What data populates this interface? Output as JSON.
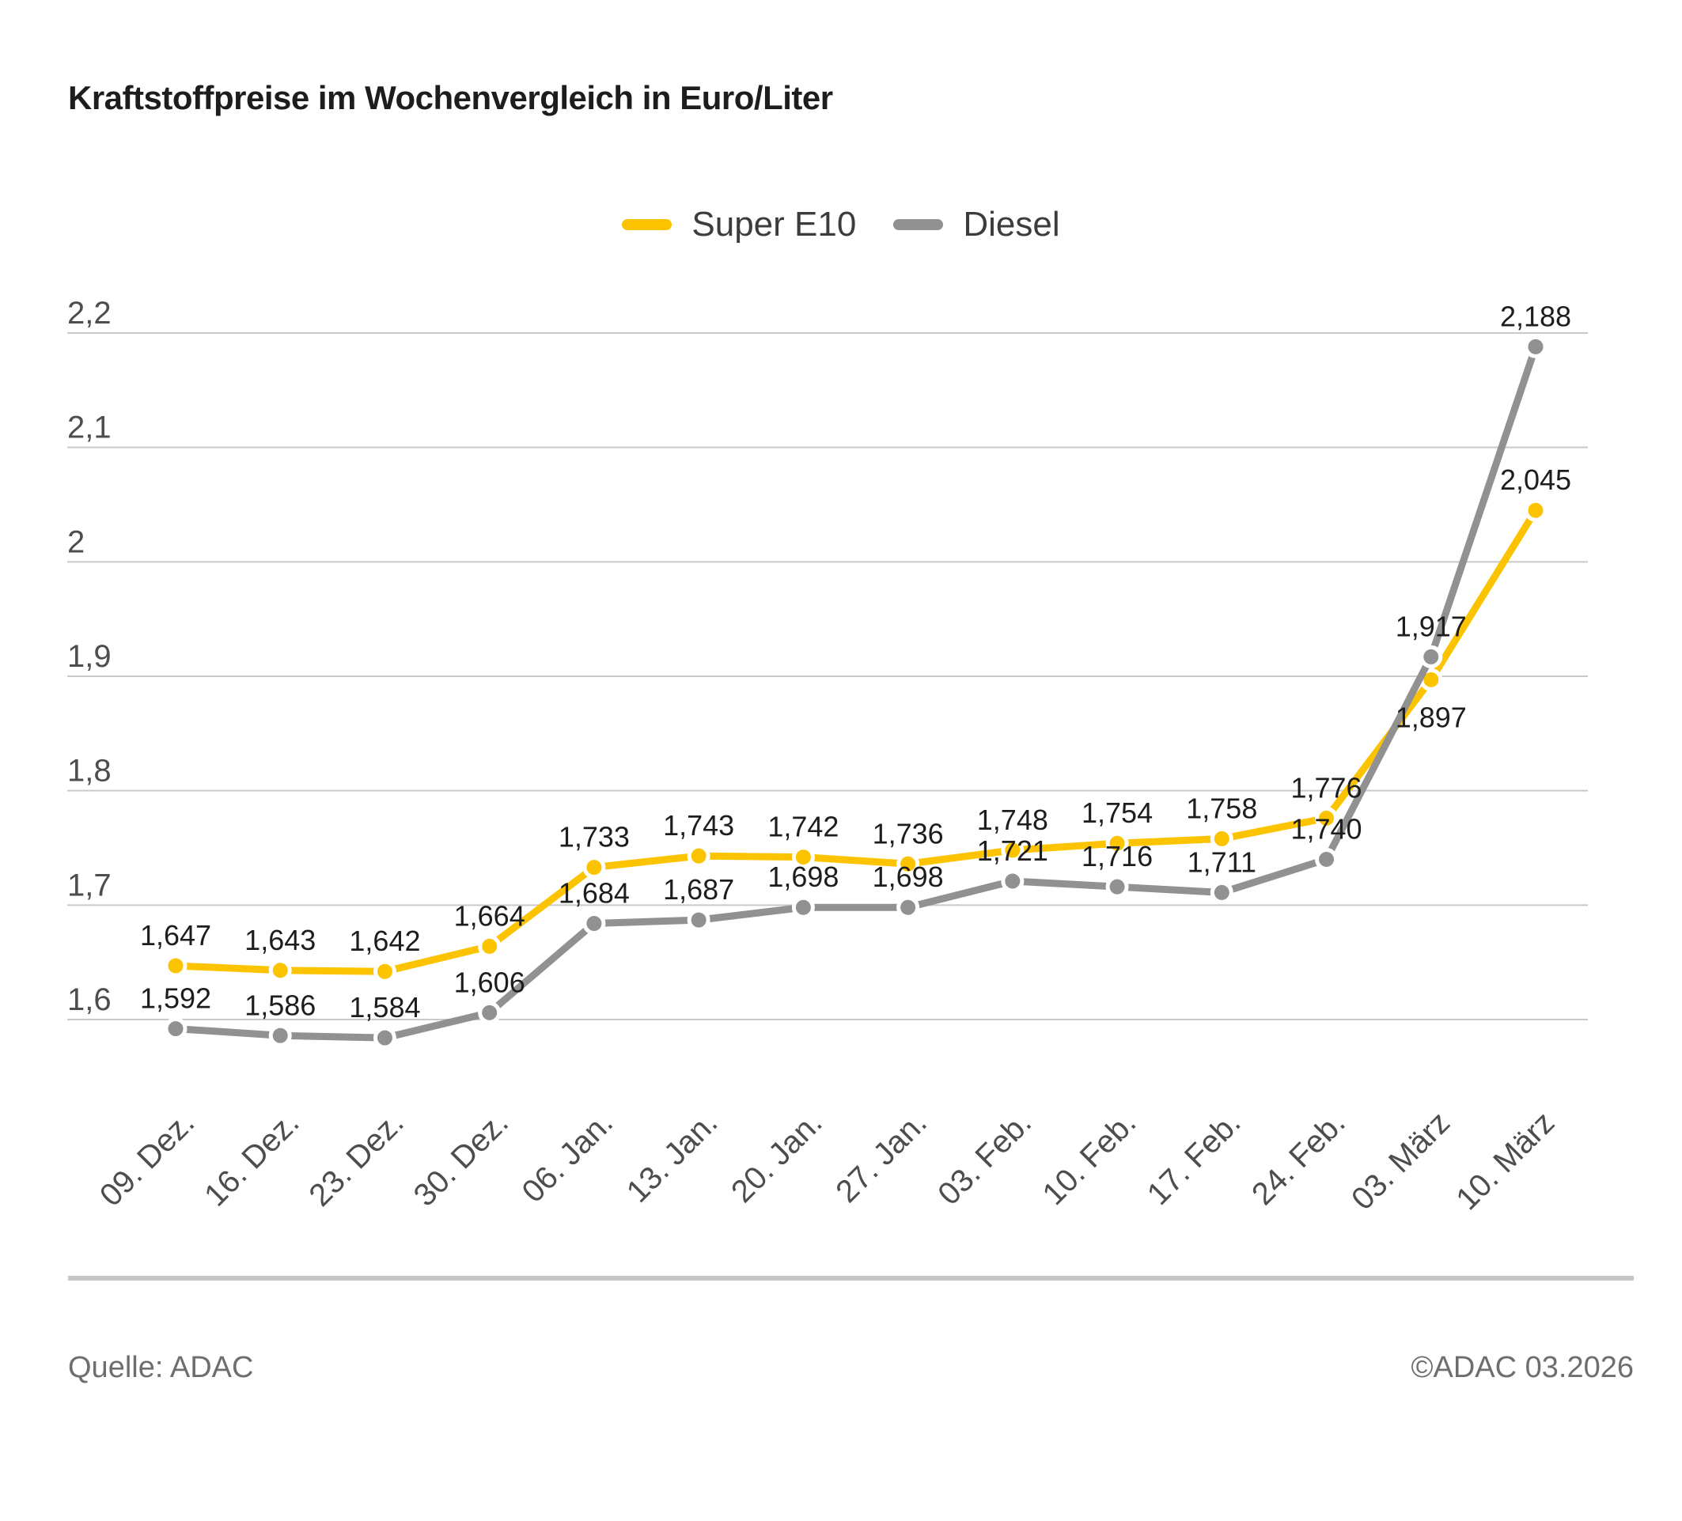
{
  "chart_data": {
    "type": "line",
    "title": "Kraftstoffpreise im Wochenvergleich in Euro/Liter",
    "xlabel": "",
    "ylabel": "Euro/Liter",
    "grid": true,
    "legend_position": "top-center",
    "decimal_separator": ",",
    "categories": [
      "09. Dez.",
      "16. Dez.",
      "23. Dez.",
      "30. Dez.",
      "06. Jan.",
      "13. Jan.",
      "20. Jan.",
      "27. Jan.",
      "03. Feb.",
      "10. Feb.",
      "17. Feb.",
      "24. Feb.",
      "03. März",
      "10. März"
    ],
    "ytick_values": [
      2.2,
      2.1,
      2.0,
      1.9,
      1.8,
      1.7,
      1.6
    ],
    "ytick_labels": [
      "2,2",
      "2,1",
      "2",
      "1,9",
      "1,8",
      "1,7",
      "1,6"
    ],
    "ylim": [
      1.55,
      2.25
    ],
    "series": [
      {
        "name": "Super E10",
        "color": "#fcc400",
        "values": [
          1.647,
          1.643,
          1.642,
          1.664,
          1.733,
          1.743,
          1.742,
          1.736,
          1.748,
          1.754,
          1.758,
          1.776,
          1.897,
          2.045
        ],
        "label_below_indices": [
          12
        ]
      },
      {
        "name": "Diesel",
        "color": "#919191",
        "values": [
          1.592,
          1.586,
          1.584,
          1.606,
          1.684,
          1.687,
          1.698,
          1.698,
          1.721,
          1.716,
          1.711,
          1.74,
          1.917,
          2.188
        ],
        "label_below_indices": []
      }
    ]
  },
  "footer": {
    "source": "Quelle: ADAC",
    "copyright": "©ADAC 03.2026"
  }
}
